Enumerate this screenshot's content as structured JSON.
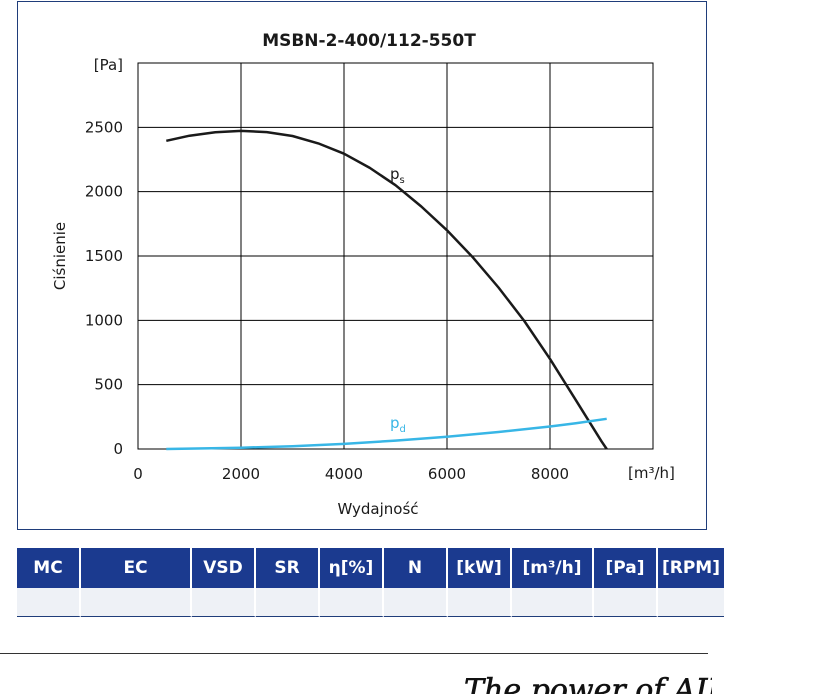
{
  "chart_data": {
    "type": "line",
    "title": "MSBN-2-400/112-550T",
    "xlabel": "Wydajność",
    "ylabel": "Ciśnienie",
    "x_unit": "[m³/h]",
    "y_unit": "[Pa]",
    "xlim": [
      0,
      10000
    ],
    "ylim": [
      0,
      2500
    ],
    "x_ticks": [
      0,
      2000,
      4000,
      6000,
      8000,
      10000
    ],
    "y_ticks": [
      0,
      500,
      1000,
      1500,
      2000,
      2500
    ],
    "x_tick_labels": [
      "0",
      "2000",
      "4000",
      "6000",
      "8000"
    ],
    "y_tick_labels": [
      "0",
      "500",
      "1000",
      "1500",
      "2000",
      "2500"
    ],
    "grid": true,
    "series": [
      {
        "name": "ps",
        "label_base": "p",
        "label_sub": "s",
        "color": "#1a1a1a",
        "x": [
          550,
          1000,
          1500,
          2000,
          2500,
          3000,
          3500,
          4000,
          4500,
          5000,
          5500,
          6000,
          6500,
          7000,
          7500,
          8000,
          8500,
          9000,
          9100
        ],
        "y": [
          2395,
          2435,
          2462,
          2472,
          2463,
          2433,
          2375,
          2295,
          2185,
          2050,
          1885,
          1700,
          1490,
          1255,
          995,
          700,
          380,
          60,
          0
        ]
      },
      {
        "name": "pd",
        "label_base": "p",
        "label_sub": "d",
        "color": "#38b6e6",
        "x": [
          550,
          1000,
          2000,
          3000,
          4000,
          5000,
          6000,
          7000,
          8000,
          8500,
          9100
        ],
        "y": [
          0,
          3,
          10,
          22,
          40,
          65,
          95,
          132,
          175,
          200,
          235
        ]
      }
    ]
  },
  "table": {
    "headers": [
      "MC",
      "EC",
      "VSD",
      "SR",
      "η[%]",
      "N",
      "[kW]",
      "[m³/h]",
      "[Pa]",
      "[RPM]"
    ],
    "row": [
      "",
      "",
      "",
      "",
      "",
      "",
      "",
      "",
      "",
      ""
    ]
  },
  "tagline": "The power of AIR"
}
